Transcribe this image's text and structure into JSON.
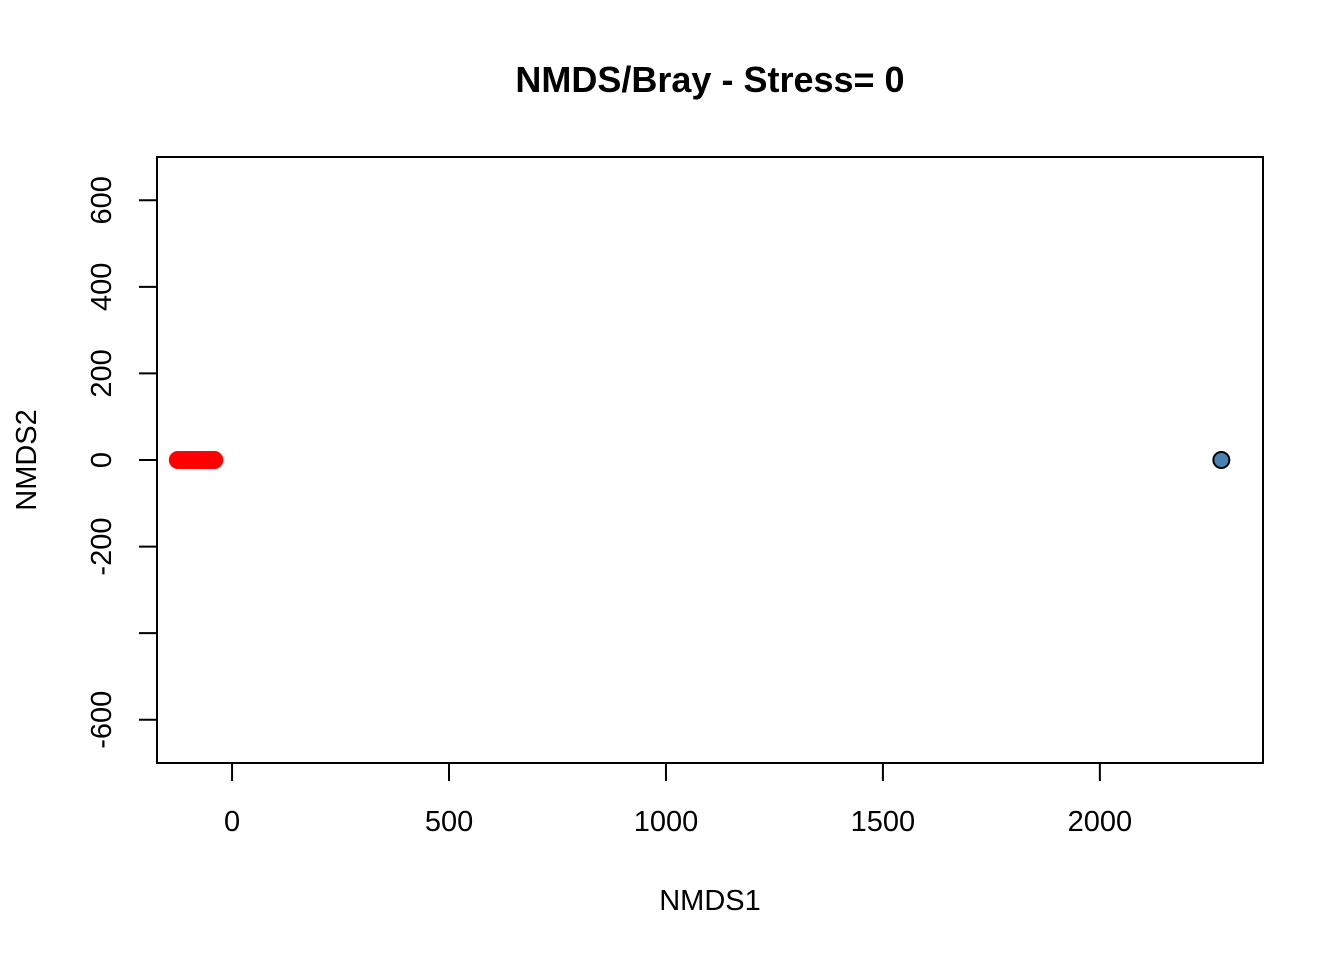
{
  "chart_data": {
    "type": "scatter",
    "title": "NMDS/Bray - Stress= 0",
    "xlabel": "NMDS1",
    "ylabel": "NMDS2",
    "xlim": [
      -173,
      2376
    ],
    "ylim": [
      -700,
      700
    ],
    "x_ticks": [
      0,
      500,
      1000,
      1500,
      2000
    ],
    "x_tick_labels": [
      "0",
      "500",
      "1000",
      "1500",
      "2000"
    ],
    "y_ticks": [
      -600,
      -400,
      -200,
      0,
      200,
      400,
      600
    ],
    "y_tick_labels": [
      "-600",
      "",
      "-200",
      "0",
      "200",
      "400",
      "600"
    ],
    "grid": false,
    "series": [
      {
        "color": "#ff0000",
        "marker": "filled-circle",
        "points": [
          {
            "x": -125,
            "y": 0
          },
          {
            "x": -118,
            "y": 0
          },
          {
            "x": -111,
            "y": 0
          },
          {
            "x": -104,
            "y": 0
          },
          {
            "x": -97,
            "y": 0
          },
          {
            "x": -90,
            "y": 0
          },
          {
            "x": -83,
            "y": 0
          },
          {
            "x": -76,
            "y": 0
          },
          {
            "x": -69,
            "y": 0
          },
          {
            "x": -62,
            "y": 0
          },
          {
            "x": -55,
            "y": 0
          },
          {
            "x": -48,
            "y": 0
          },
          {
            "x": -41,
            "y": 0
          }
        ]
      },
      {
        "color": "#4682b4",
        "marker": "circle-outlined",
        "points": [
          {
            "x": 2280,
            "y": 0
          }
        ]
      }
    ]
  }
}
